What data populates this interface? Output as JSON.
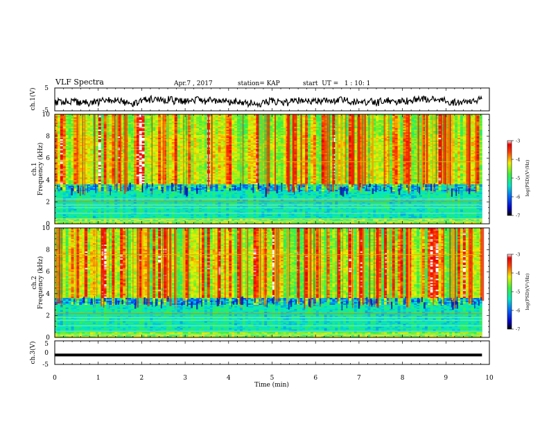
{
  "header": {
    "title": "VLF Spectra",
    "date": "Apr.7 , 2017",
    "station": "station= KAP",
    "start": "start  UT =   1 : 10: 1"
  },
  "colors": {
    "background": "#ffffff",
    "axis": "#000000",
    "waveform": "#000000"
  },
  "chart_data": [
    {
      "type": "line",
      "ylabel": "ch.1(V)",
      "ylim": [
        -5,
        5
      ],
      "yticks": [
        -5,
        5
      ],
      "xlim": [
        0,
        10
      ],
      "description_series": "noisy waveform, mean about -1 V"
    },
    {
      "type": "heatmap",
      "ylabel": "ch.1\nFrequency (kHz)",
      "ylim": [
        0,
        10
      ],
      "yticks": [
        0,
        2,
        4,
        6,
        8,
        10
      ],
      "xlim": [
        0,
        10
      ],
      "data_extent_x": [
        0,
        9.83
      ],
      "colorbar": {
        "label": "log(PSD)(V²/Hz)",
        "range": [
          -7,
          -3
        ],
        "ticks": [
          -3,
          -4,
          -5,
          -6,
          -7
        ]
      }
    },
    {
      "type": "heatmap",
      "ylabel": "ch.2\nFrequency (kHz)",
      "ylim": [
        0,
        10
      ],
      "yticks": [
        0,
        2,
        4,
        6,
        8,
        10
      ],
      "xlim": [
        0,
        10
      ],
      "data_extent_x": [
        0,
        9.83
      ],
      "colorbar": {
        "label": "log(PSD)(V²/Hz)",
        "range": [
          -7,
          -3
        ],
        "ticks": [
          -3,
          -4,
          -5,
          -6,
          -7
        ]
      }
    },
    {
      "type": "line",
      "ylabel": "ch.3(V)",
      "ylim": [
        -5,
        5
      ],
      "yticks": [
        -5,
        0,
        5
      ],
      "xlim": [
        0,
        10
      ],
      "xlabel": "Time (min)",
      "xticks": [
        0,
        1,
        2,
        3,
        4,
        5,
        6,
        7,
        8,
        9,
        10
      ],
      "series": [
        {
          "x": [
            0,
            9.83
          ],
          "y": [
            -1,
            -1
          ]
        }
      ]
    }
  ]
}
